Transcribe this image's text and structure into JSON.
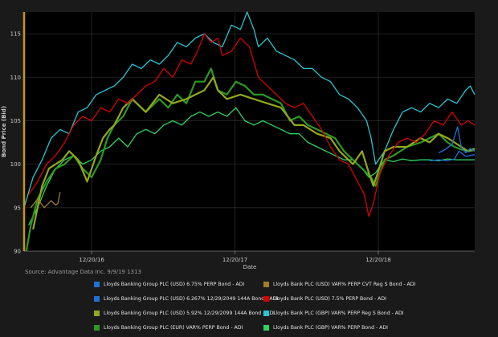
{
  "chart_data": {
    "type": "line",
    "ylabel": "Bond Price (Bid)",
    "xlabel": "Date",
    "ylim": [
      90,
      117.5
    ],
    "yticks": [
      90,
      95,
      100,
      105,
      110,
      115
    ],
    "xlim": [
      0,
      1000
    ],
    "xticks": [
      {
        "x": 150,
        "label": "12/20/16"
      },
      {
        "x": 468,
        "label": "12/20/17"
      },
      {
        "x": 786,
        "label": "12/20/18"
      }
    ],
    "grid": true,
    "legend_position": "bottom",
    "source": "Source: Advantage Data Inc. 9/9/19 1313",
    "series": [
      {
        "name": "Lloyds Banking Group PLC (USD) 6.75% PERP Bond - ADI",
        "color": "#1e73d2",
        "x": [
          920,
          935,
          950,
          962,
          970,
          980,
          990,
          1000
        ],
        "y": [
          101.3,
          101.7,
          102.3,
          104.3,
          102.0,
          101.3,
          101.8,
          101.5
        ]
      },
      {
        "name": "Lloyds Banking Group PLC (USD) 6.267% 12/29/2049 144A Bond - ADI",
        "color": "#1e73d2",
        "x": [
          900,
          920,
          940,
          955,
          965,
          980,
          1000
        ],
        "y": [
          100.4,
          100.5,
          100.4,
          100.6,
          101.5,
          100.9,
          101.1
        ]
      },
      {
        "name": "Lloyds Banking Group PLC (USD) 5.92% 12/29/2099 144A Bond - ADI",
        "color": "#93a81c",
        "x": [
          20,
          40,
          55,
          70,
          85,
          100,
          120,
          140,
          160,
          175,
          190,
          200,
          220,
          240,
          270,
          300,
          330,
          360,
          400,
          420,
          430,
          450,
          480,
          510,
          540,
          570,
          600,
          620,
          650,
          680,
          700,
          730,
          750,
          765,
          775,
          785,
          800,
          820,
          850,
          880,
          900,
          920,
          940,
          955,
          970,
          985,
          1000
        ],
        "y": [
          92.5,
          97.5,
          99.5,
          100.0,
          100.5,
          101.5,
          100.5,
          98.0,
          101.0,
          103.0,
          104.0,
          104.5,
          106.5,
          107.5,
          106.0,
          108.0,
          107.0,
          107.5,
          108.5,
          110.0,
          108.5,
          107.5,
          108.0,
          107.5,
          107.0,
          106.5,
          104.5,
          104.5,
          103.5,
          103.0,
          101.5,
          100.0,
          101.5,
          99.0,
          97.5,
          99.0,
          101.5,
          102.0,
          102.0,
          103.0,
          102.5,
          103.5,
          103.0,
          102.5,
          102.0,
          101.5,
          101.8
        ]
      },
      {
        "name": "Lloyds Banking Group PLC (EUR) VAR% PERP Bond - ADI",
        "color": "#2c9922",
        "x": [
          5,
          15,
          30,
          50,
          70,
          90,
          110,
          130,
          150,
          170,
          185,
          200,
          220,
          240,
          270,
          300,
          320,
          340,
          360,
          380,
          400,
          415,
          430,
          450,
          470,
          490,
          510,
          530,
          550,
          570,
          590,
          610,
          630,
          650,
          670,
          690,
          710,
          730,
          750,
          760,
          770,
          780,
          800,
          820,
          850,
          880,
          900,
          920,
          940,
          955,
          970,
          985,
          1000
        ],
        "y": [
          90.0,
          93.0,
          96.0,
          98.0,
          99.5,
          100.0,
          101.0,
          99.5,
          98.5,
          100.5,
          103.0,
          104.5,
          105.5,
          107.5,
          106.0,
          107.5,
          106.5,
          108.0,
          107.0,
          109.5,
          109.5,
          111.0,
          108.5,
          108.0,
          109.5,
          109.0,
          108.0,
          108.0,
          107.5,
          107.0,
          105.0,
          105.5,
          104.5,
          104.0,
          103.5,
          103.0,
          101.5,
          100.5,
          99.5,
          99.0,
          98.5,
          97.5,
          100.5,
          101.0,
          102.0,
          102.5,
          103.0,
          103.5,
          102.5,
          102.0,
          101.7,
          101.5,
          101.6
        ]
      },
      {
        "name": "Lloyds Bank PLC (USD) VAR% PERP CVT Reg S Bond - ADI",
        "color": "#a07e2c",
        "x": [
          15,
          30,
          45,
          60,
          70,
          75,
          80
        ],
        "y": [
          95.0,
          96.0,
          95.0,
          95.8,
          95.3,
          95.5,
          96.8
        ]
      },
      {
        "name": "Lloyds Bank PLC (USD) 7.5% PERP Bond - ADI",
        "color": "#d80000",
        "x": [
          10,
          30,
          50,
          70,
          90,
          110,
          130,
          150,
          170,
          190,
          210,
          230,
          250,
          270,
          290,
          310,
          330,
          350,
          370,
          385,
          400,
          415,
          430,
          440,
          460,
          480,
          500,
          520,
          540,
          560,
          580,
          600,
          620,
          640,
          660,
          680,
          700,
          720,
          740,
          755,
          765,
          775,
          790,
          810,
          830,
          850,
          870,
          890,
          910,
          930,
          950,
          970,
          985,
          1000
        ],
        "y": [
          96.5,
          98.0,
          100.0,
          101.0,
          102.5,
          104.5,
          105.5,
          105.0,
          106.5,
          106.0,
          107.5,
          107.0,
          108.0,
          109.0,
          109.5,
          111.0,
          110.0,
          112.0,
          111.5,
          113.0,
          115.0,
          114.0,
          114.5,
          112.5,
          113.0,
          114.5,
          113.5,
          110.0,
          109.0,
          108.0,
          107.0,
          106.5,
          107.0,
          105.5,
          104.0,
          102.0,
          100.5,
          100.0,
          98.0,
          96.5,
          94.0,
          95.5,
          99.0,
          101.0,
          102.5,
          103.0,
          102.5,
          103.5,
          105.0,
          104.5,
          106.0,
          104.5,
          105.0,
          104.5
        ]
      },
      {
        "name": "Lloyds Bank PLC (GBP) VAR% PERP Reg S Bond - ADI",
        "color": "#27c6d1",
        "x": [
          0,
          20,
          40,
          60,
          80,
          100,
          120,
          140,
          160,
          180,
          200,
          220,
          240,
          260,
          280,
          300,
          320,
          340,
          360,
          380,
          400,
          420,
          440,
          460,
          480,
          495,
          510,
          520,
          540,
          560,
          580,
          600,
          620,
          640,
          660,
          680,
          700,
          720,
          740,
          760,
          770,
          780,
          800,
          820,
          840,
          860,
          880,
          900,
          920,
          940,
          960,
          980,
          990,
          1000
        ],
        "y": [
          95.0,
          98.5,
          100.5,
          103.0,
          104.0,
          103.5,
          106.0,
          106.5,
          108.0,
          108.5,
          109.0,
          110.0,
          111.5,
          111.0,
          112.0,
          111.5,
          112.5,
          114.0,
          113.5,
          114.5,
          115.0,
          114.0,
          113.5,
          116.0,
          115.5,
          117.5,
          115.5,
          113.5,
          114.5,
          113.0,
          112.5,
          112.0,
          111.0,
          111.0,
          110.0,
          109.5,
          108.0,
          107.5,
          106.5,
          105.0,
          103.0,
          100.0,
          101.5,
          104.0,
          106.0,
          106.5,
          106.0,
          107.0,
          106.5,
          107.5,
          107.0,
          108.5,
          109.0,
          108.0
        ]
      },
      {
        "name": "Lloyds Bank PLC (GBP) VAR% PERP Bond - ADI",
        "color": "#2fd35e",
        "x": [
          10,
          30,
          50,
          70,
          90,
          110,
          130,
          150,
          170,
          190,
          210,
          230,
          250,
          270,
          290,
          310,
          330,
          350,
          370,
          390,
          410,
          430,
          450,
          470,
          490,
          510,
          530,
          550,
          570,
          590,
          610,
          630,
          650,
          670,
          690,
          710,
          730,
          750,
          765,
          780,
          800,
          820,
          840,
          860,
          880,
          900,
          920,
          940,
          960,
          980,
          1000
        ],
        "y": [
          93.0,
          95.0,
          97.5,
          99.5,
          100.5,
          101.0,
          100.0,
          100.5,
          101.5,
          102.0,
          103.0,
          102.0,
          103.5,
          104.0,
          103.5,
          104.5,
          105.0,
          104.5,
          105.5,
          106.0,
          105.5,
          106.0,
          105.5,
          106.5,
          105.0,
          104.5,
          105.0,
          104.5,
          104.0,
          103.5,
          103.5,
          102.5,
          102.0,
          101.5,
          101.0,
          100.5,
          100.5,
          99.5,
          98.5,
          99.0,
          100.5,
          100.3,
          100.6,
          100.4,
          100.5,
          100.5,
          100.4,
          100.6,
          100.5,
          100.5,
          100.5
        ]
      }
    ]
  }
}
